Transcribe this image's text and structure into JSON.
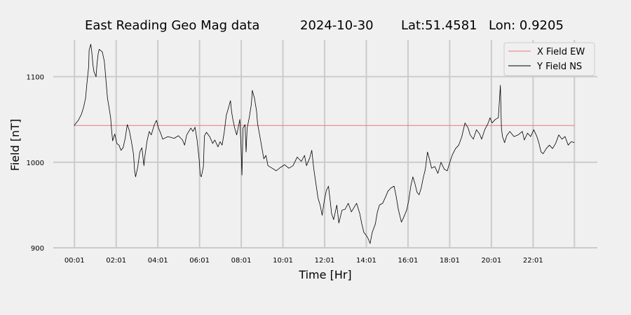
{
  "chart_data": {
    "type": "line",
    "title_parts": [
      "East Reading Geo Mag data",
      "2024-10-30",
      "Lat:51.4581",
      "Lon: 0.9205"
    ],
    "xlabel": "Time  [Hr]",
    "ylabel": "Field  [nT]",
    "x_unit": "hours",
    "xlim": [
      -1,
      25.1
    ],
    "ylim": [
      900,
      1143
    ],
    "x_ticks": [
      {
        "x": 0.0167,
        "label": "00:01"
      },
      {
        "x": 2.0167,
        "label": "02:01"
      },
      {
        "x": 4.0167,
        "label": "04:01"
      },
      {
        "x": 6.0167,
        "label": "06:01"
      },
      {
        "x": 8.0167,
        "label": "08:01"
      },
      {
        "x": 10.0167,
        "label": "10:01"
      },
      {
        "x": 12.0167,
        "label": "12:01"
      },
      {
        "x": 14.0167,
        "label": "14:01"
      },
      {
        "x": 16.0167,
        "label": "16:01"
      },
      {
        "x": 18.0167,
        "label": "18:01"
      },
      {
        "x": 20.0167,
        "label": "20:01"
      },
      {
        "x": 22.0167,
        "label": "22:01"
      }
    ],
    "extra_gridlines_x": [
      24.0
    ],
    "y_ticks": [
      {
        "y": 900,
        "label": "900"
      },
      {
        "y": 1000,
        "label": "1000"
      },
      {
        "y": 1100,
        "label": "1100"
      }
    ],
    "grid": true,
    "legend_position": "top-right",
    "series": [
      {
        "name": "X Field EW",
        "color": "#e8787a",
        "points": [
          [
            0.0,
            1043
          ],
          [
            24.0,
            1043
          ]
        ]
      },
      {
        "name": "Y Field NS",
        "color": "#000000",
        "points": [
          [
            0.0,
            1043
          ],
          [
            0.1,
            1046
          ],
          [
            0.2,
            1049
          ],
          [
            0.35,
            1056
          ],
          [
            0.45,
            1064
          ],
          [
            0.55,
            1075
          ],
          [
            0.6,
            1089
          ],
          [
            0.7,
            1112
          ],
          [
            0.72,
            1131
          ],
          [
            0.8,
            1138
          ],
          [
            0.85,
            1128
          ],
          [
            0.9,
            1114
          ],
          [
            0.95,
            1106
          ],
          [
            1.05,
            1100
          ],
          [
            1.1,
            1115
          ],
          [
            1.15,
            1126
          ],
          [
            1.2,
            1132
          ],
          [
            1.35,
            1129
          ],
          [
            1.45,
            1118
          ],
          [
            1.5,
            1104
          ],
          [
            1.6,
            1075
          ],
          [
            1.7,
            1060
          ],
          [
            1.75,
            1052
          ],
          [
            1.8,
            1037
          ],
          [
            1.85,
            1025
          ],
          [
            1.95,
            1033
          ],
          [
            2.05,
            1022
          ],
          [
            2.15,
            1020
          ],
          [
            2.25,
            1014
          ],
          [
            2.35,
            1017
          ],
          [
            2.45,
            1028
          ],
          [
            2.55,
            1044
          ],
          [
            2.65,
            1037
          ],
          [
            2.75,
            1024
          ],
          [
            2.85,
            1009
          ],
          [
            2.9,
            990
          ],
          [
            2.95,
            983
          ],
          [
            3.05,
            994
          ],
          [
            3.15,
            1012
          ],
          [
            3.25,
            1017
          ],
          [
            3.35,
            996
          ],
          [
            3.4,
            1008
          ],
          [
            3.5,
            1025
          ],
          [
            3.6,
            1036
          ],
          [
            3.7,
            1032
          ],
          [
            3.85,
            1044
          ],
          [
            3.95,
            1049
          ],
          [
            4.05,
            1040
          ],
          [
            4.15,
            1034
          ],
          [
            4.25,
            1027
          ],
          [
            4.5,
            1030
          ],
          [
            4.8,
            1028
          ],
          [
            5.0,
            1031
          ],
          [
            5.2,
            1026
          ],
          [
            5.3,
            1020
          ],
          [
            5.4,
            1032
          ],
          [
            5.6,
            1040
          ],
          [
            5.7,
            1036
          ],
          [
            5.8,
            1041
          ],
          [
            5.9,
            1026
          ],
          [
            6.0,
            1003
          ],
          [
            6.05,
            985
          ],
          [
            6.1,
            983
          ],
          [
            6.2,
            995
          ],
          [
            6.25,
            1031
          ],
          [
            6.35,
            1035
          ],
          [
            6.5,
            1030
          ],
          [
            6.65,
            1022
          ],
          [
            6.75,
            1026
          ],
          [
            6.9,
            1018
          ],
          [
            7.0,
            1024
          ],
          [
            7.1,
            1020
          ],
          [
            7.2,
            1035
          ],
          [
            7.3,
            1055
          ],
          [
            7.4,
            1063
          ],
          [
            7.5,
            1072
          ],
          [
            7.55,
            1060
          ],
          [
            7.6,
            1052
          ],
          [
            7.7,
            1040
          ],
          [
            7.8,
            1032
          ],
          [
            7.95,
            1050
          ],
          [
            8.0,
            1022
          ],
          [
            8.05,
            985
          ],
          [
            8.1,
            1040
          ],
          [
            8.2,
            1044
          ],
          [
            8.25,
            1012
          ],
          [
            8.3,
            1040
          ],
          [
            8.4,
            1052
          ],
          [
            8.5,
            1068
          ],
          [
            8.55,
            1084
          ],
          [
            8.65,
            1075
          ],
          [
            8.75,
            1060
          ],
          [
            8.8,
            1045
          ],
          [
            8.9,
            1032
          ],
          [
            9.0,
            1018
          ],
          [
            9.1,
            1004
          ],
          [
            9.2,
            1008
          ],
          [
            9.3,
            996
          ],
          [
            9.5,
            993
          ],
          [
            9.7,
            990
          ],
          [
            9.9,
            994
          ],
          [
            10.1,
            997
          ],
          [
            10.3,
            993
          ],
          [
            10.5,
            996
          ],
          [
            10.7,
            1006
          ],
          [
            10.9,
            1001
          ],
          [
            11.05,
            1008
          ],
          [
            11.15,
            996
          ],
          [
            11.3,
            1005
          ],
          [
            11.4,
            1014
          ],
          [
            11.5,
            992
          ],
          [
            11.6,
            975
          ],
          [
            11.7,
            958
          ],
          [
            11.8,
            950
          ],
          [
            11.9,
            938
          ],
          [
            12.0,
            955
          ],
          [
            12.1,
            967
          ],
          [
            12.2,
            972
          ],
          [
            12.3,
            952
          ],
          [
            12.35,
            940
          ],
          [
            12.45,
            933
          ],
          [
            12.6,
            950
          ],
          [
            12.7,
            929
          ],
          [
            12.85,
            944
          ],
          [
            13.0,
            945
          ],
          [
            13.15,
            952
          ],
          [
            13.3,
            942
          ],
          [
            13.45,
            948
          ],
          [
            13.55,
            952
          ],
          [
            13.7,
            940
          ],
          [
            13.8,
            928
          ],
          [
            13.9,
            918
          ],
          [
            14.0,
            915
          ],
          [
            14.1,
            911
          ],
          [
            14.2,
            905
          ],
          [
            14.3,
            918
          ],
          [
            14.45,
            928
          ],
          [
            14.55,
            942
          ],
          [
            14.65,
            950
          ],
          [
            14.8,
            952
          ],
          [
            14.95,
            960
          ],
          [
            15.05,
            966
          ],
          [
            15.2,
            970
          ],
          [
            15.35,
            972
          ],
          [
            15.45,
            960
          ],
          [
            15.55,
            945
          ],
          [
            15.7,
            930
          ],
          [
            15.8,
            935
          ],
          [
            15.95,
            944
          ],
          [
            16.05,
            955
          ],
          [
            16.15,
            972
          ],
          [
            16.25,
            983
          ],
          [
            16.35,
            975
          ],
          [
            16.45,
            965
          ],
          [
            16.55,
            962
          ],
          [
            16.65,
            970
          ],
          [
            16.75,
            982
          ],
          [
            16.85,
            992
          ],
          [
            16.95,
            1012
          ],
          [
            17.05,
            1003
          ],
          [
            17.15,
            993
          ],
          [
            17.3,
            995
          ],
          [
            17.45,
            987
          ],
          [
            17.6,
            1000
          ],
          [
            17.75,
            992
          ],
          [
            17.9,
            990
          ],
          [
            18.05,
            1002
          ],
          [
            18.15,
            1009
          ],
          [
            18.3,
            1016
          ],
          [
            18.45,
            1020
          ],
          [
            18.6,
            1030
          ],
          [
            18.75,
            1046
          ],
          [
            18.9,
            1040
          ],
          [
            19.0,
            1032
          ],
          [
            19.15,
            1027
          ],
          [
            19.3,
            1038
          ],
          [
            19.45,
            1033
          ],
          [
            19.55,
            1027
          ],
          [
            19.7,
            1038
          ],
          [
            19.85,
            1045
          ],
          [
            19.95,
            1052
          ],
          [
            20.05,
            1046
          ],
          [
            20.2,
            1050
          ],
          [
            20.35,
            1052
          ],
          [
            20.45,
            1090
          ],
          [
            20.5,
            1040
          ],
          [
            20.55,
            1030
          ],
          [
            20.65,
            1023
          ],
          [
            20.75,
            1031
          ],
          [
            20.9,
            1036
          ],
          [
            21.1,
            1030
          ],
          [
            21.3,
            1032
          ],
          [
            21.5,
            1036
          ],
          [
            21.6,
            1026
          ],
          [
            21.75,
            1034
          ],
          [
            21.9,
            1030
          ],
          [
            22.05,
            1038
          ],
          [
            22.2,
            1030
          ],
          [
            22.3,
            1022
          ],
          [
            22.4,
            1012
          ],
          [
            22.5,
            1010
          ],
          [
            22.65,
            1016
          ],
          [
            22.8,
            1020
          ],
          [
            22.95,
            1016
          ],
          [
            23.1,
            1022
          ],
          [
            23.25,
            1032
          ],
          [
            23.4,
            1027
          ],
          [
            23.55,
            1030
          ],
          [
            23.7,
            1020
          ],
          [
            23.85,
            1024
          ],
          [
            24.0,
            1023
          ]
        ]
      }
    ]
  }
}
